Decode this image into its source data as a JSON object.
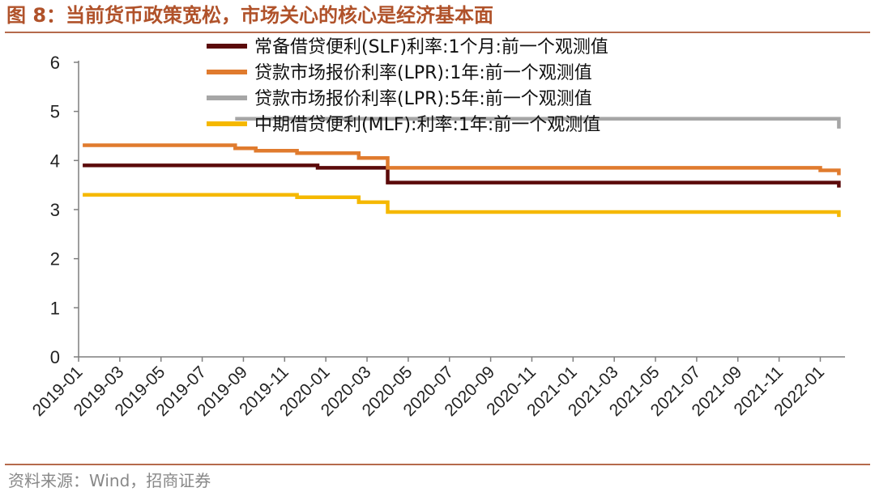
{
  "figure": {
    "title": "图 8：当前货币政策宽松，市场关心的核心是经济基本面",
    "source": "资料来源：Wind，招商证券"
  },
  "colors": {
    "accent": "#b0522a",
    "slf": "#5b0a0a",
    "lpr1": "#e07b2e",
    "lpr5": "#a6a6a6",
    "mlf": "#f5b800"
  },
  "chart_data": {
    "type": "line",
    "title": "",
    "xlabel": "",
    "ylabel": "",
    "ylim": [
      0,
      6
    ],
    "yticks": [
      0,
      1,
      2,
      3,
      4,
      5,
      6
    ],
    "grid": false,
    "legend_position": "top",
    "x_range": [
      0,
      37.2
    ],
    "x_ticks": [
      {
        "label": "2019-01",
        "t": 0
      },
      {
        "label": "2019-03",
        "t": 2
      },
      {
        "label": "2019-05",
        "t": 4
      },
      {
        "label": "2019-07",
        "t": 6
      },
      {
        "label": "2019-09",
        "t": 8
      },
      {
        "label": "2019-11",
        "t": 10
      },
      {
        "label": "2020-01",
        "t": 12
      },
      {
        "label": "2020-03",
        "t": 14
      },
      {
        "label": "2020-05",
        "t": 16
      },
      {
        "label": "2020-07",
        "t": 18
      },
      {
        "label": "2020-09",
        "t": 20
      },
      {
        "label": "2020-11",
        "t": 22
      },
      {
        "label": "2021-01",
        "t": 24
      },
      {
        "label": "2021-03",
        "t": 26
      },
      {
        "label": "2021-05",
        "t": 28
      },
      {
        "label": "2021-07",
        "t": 30
      },
      {
        "label": "2021-09",
        "t": 32
      },
      {
        "label": "2021-11",
        "t": 34
      },
      {
        "label": "2022-01",
        "t": 36
      }
    ],
    "series": [
      {
        "key": "slf",
        "name": "常备借贷便利(SLF)利率:1个月:前一个观测值",
        "x": [
          0.2,
          11.6,
          11.6,
          15.0,
          15.0,
          36.9,
          36.9
        ],
        "y": [
          3.9,
          3.9,
          3.85,
          3.85,
          3.55,
          3.55,
          3.45
        ]
      },
      {
        "key": "lpr1",
        "name": "贷款市场报价利率(LPR):1年:前一个观测值",
        "x": [
          0.2,
          7.6,
          7.6,
          8.6,
          8.6,
          10.6,
          10.6,
          13.6,
          13.6,
          15.0,
          15.0,
          36.0,
          36.0,
          36.9,
          36.9
        ],
        "y": [
          4.31,
          4.31,
          4.25,
          4.25,
          4.2,
          4.2,
          4.15,
          4.15,
          4.05,
          4.05,
          3.85,
          3.85,
          3.8,
          3.8,
          3.7
        ]
      },
      {
        "key": "lpr5",
        "name": "贷款市场报价利率(LPR):5年:前一个观测值",
        "x": [
          7.6,
          36.9,
          36.9
        ],
        "y": [
          4.85,
          4.85,
          4.65
        ]
      },
      {
        "key": "mlf",
        "name": "中期借贷便利(MLF):利率:1年:前一个观测值",
        "x": [
          0.2,
          10.6,
          10.6,
          13.6,
          13.6,
          15.0,
          15.0,
          36.9,
          36.9
        ],
        "y": [
          3.3,
          3.3,
          3.25,
          3.25,
          3.15,
          3.15,
          2.95,
          2.95,
          2.85
        ]
      }
    ]
  }
}
